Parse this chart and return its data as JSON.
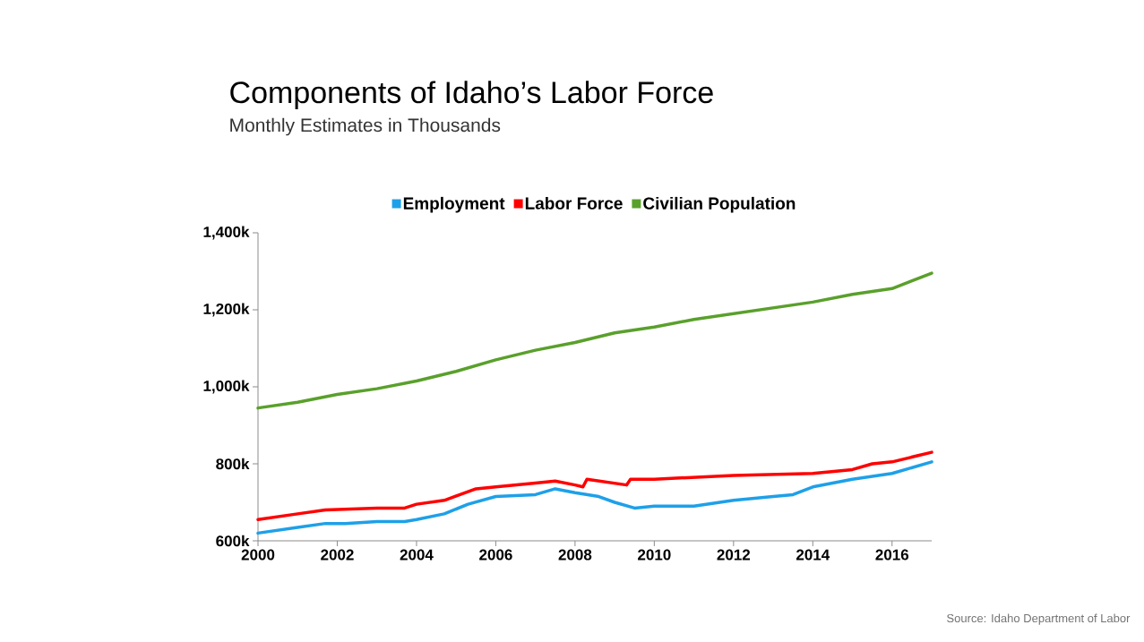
{
  "chart_data": {
    "type": "line",
    "title": "Components of Idaho’s Labor Force",
    "subtitle": "Monthly Estimates in Thousands",
    "annotations": [
      "Source: Idaho Department of Labor"
    ],
    "legend": "top",
    "line_style": "solid",
    "marker": "none",
    "xlim": [
      2000,
      2017
    ],
    "xticks": [
      2000,
      2002,
      2004,
      2006,
      2008,
      2010,
      2012,
      2014,
      2016
    ],
    "ylim": [
      600,
      1400
    ],
    "yticks": [
      {
        "value": 600,
        "label": "600k"
      },
      {
        "value": 800,
        "label": "800k"
      },
      {
        "value": 1000,
        "label": "1,000k"
      },
      {
        "value": 1200,
        "label": "1,200k"
      },
      {
        "value": 1400,
        "label": "1,400k"
      }
    ],
    "series": [
      {
        "name": "Employment",
        "color": "#1ea0e8",
        "x": [
          2000,
          2001,
          2001.7,
          2002.2,
          2003,
          2003.7,
          2004,
          2004.7,
          2005.3,
          2006,
          2007,
          2007.5,
          2008,
          2008.6,
          2009,
          2009.5,
          2010,
          2011,
          2012,
          2013,
          2013.5,
          2014,
          2015,
          2016,
          2017
        ],
        "values": [
          620,
          635,
          645,
          645,
          650,
          650,
          655,
          670,
          695,
          715,
          720,
          735,
          725,
          715,
          700,
          685,
          690,
          690,
          705,
          715,
          720,
          740,
          760,
          775,
          805
        ]
      },
      {
        "name": "Labor Force",
        "color": "#ff0000",
        "x": [
          2000,
          2001,
          2001.7,
          2003,
          2003.7,
          2004,
          2004.7,
          2005.5,
          2006,
          2007,
          2007.5,
          2008,
          2008.2,
          2008.3,
          2009.3,
          2009.4,
          2010,
          2012,
          2014,
          2015,
          2015.5,
          2016,
          2017
        ],
        "values": [
          655,
          670,
          680,
          685,
          685,
          695,
          705,
          735,
          740,
          750,
          755,
          745,
          740,
          760,
          745,
          760,
          760,
          770,
          775,
          785,
          800,
          805,
          830
        ]
      },
      {
        "name": "Civilian Population",
        "color": "#5aa02c",
        "x": [
          2000,
          2001,
          2002,
          2003,
          2004,
          2005,
          2006,
          2007,
          2008,
          2009,
          2010,
          2011,
          2012,
          2013,
          2014,
          2015,
          2016,
          2017
        ],
        "values": [
          945,
          960,
          980,
          995,
          1015,
          1040,
          1070,
          1095,
          1115,
          1140,
          1155,
          1175,
          1190,
          1205,
          1220,
          1240,
          1255,
          1295
        ]
      }
    ]
  }
}
